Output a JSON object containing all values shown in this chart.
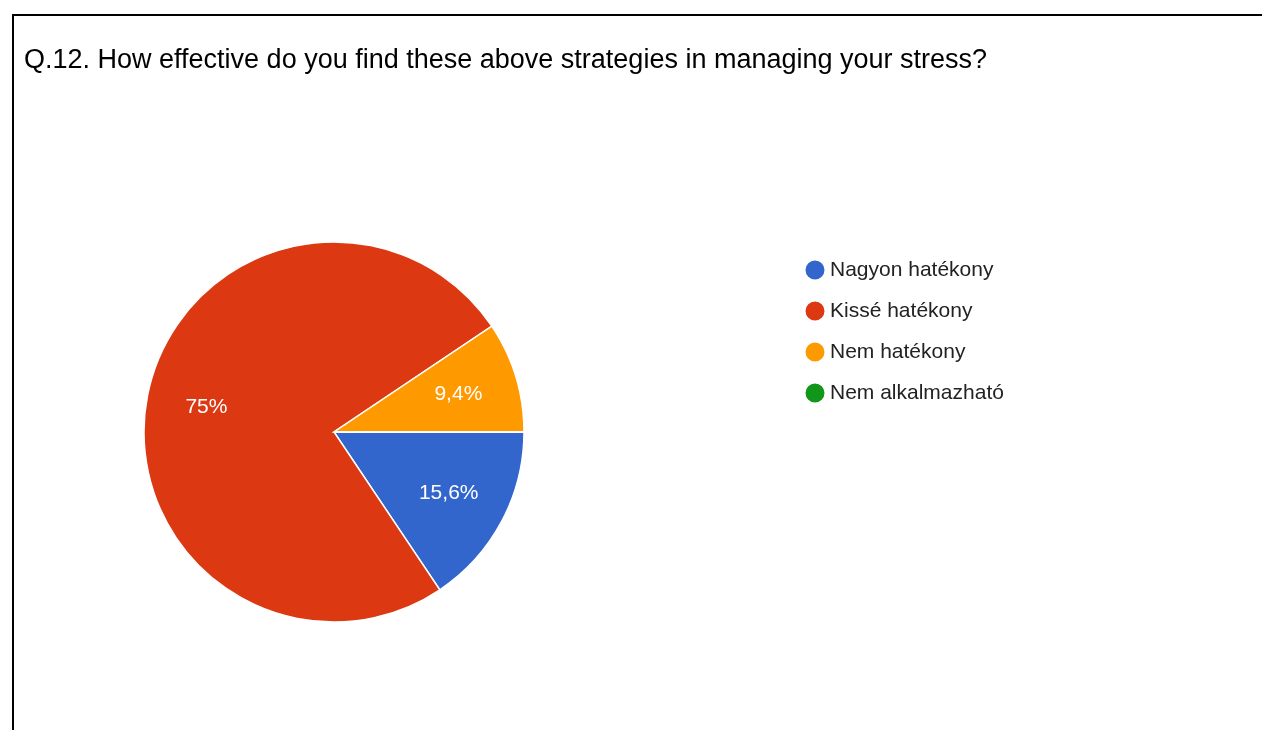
{
  "chart_data": {
    "type": "pie",
    "title": "Q.12. How effective do you find these above strategies in managing your stress?",
    "categories": [
      "Nagyon hatékony",
      "Kissé hatékony",
      "Nem hatékony",
      "Nem alkalmazható"
    ],
    "values": [
      15.6,
      75,
      9.4,
      0
    ],
    "colors": [
      "#3366cc",
      "#dc3912",
      "#ff9900",
      "#109618"
    ],
    "value_labels": [
      "15,6%",
      "75%",
      "9,4%",
      null
    ],
    "legend": "right"
  }
}
